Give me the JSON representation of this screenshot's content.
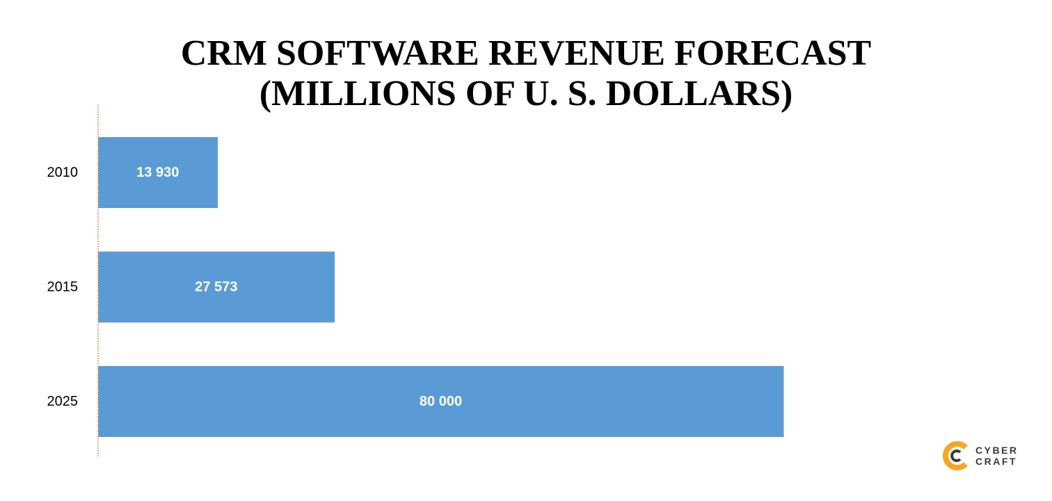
{
  "chart_data": {
    "type": "bar",
    "orientation": "horizontal",
    "title_lines": [
      "CRM SOFTWARE REVENUE FORECAST",
      "(MILLIONS OF U. S. DOLLARS)"
    ],
    "categories": [
      "2010",
      "2015",
      "2025"
    ],
    "values": [
      13930,
      27573,
      80000
    ],
    "data_labels": [
      "13 930",
      "27 573",
      "80 000"
    ],
    "xlim": [
      0,
      80000
    ],
    "grid": false,
    "legend": "none",
    "colors": {
      "bar": "#5B9BD5",
      "axis": "#C55A11",
      "data_label": "#FFFFFF"
    }
  },
  "logo": {
    "line1": "CYBER",
    "line2": "CRAFT",
    "mark_color": "#F5A623",
    "mark_inner_color": "#3A3A3A",
    "icon": "c-ring-logo-icon"
  }
}
